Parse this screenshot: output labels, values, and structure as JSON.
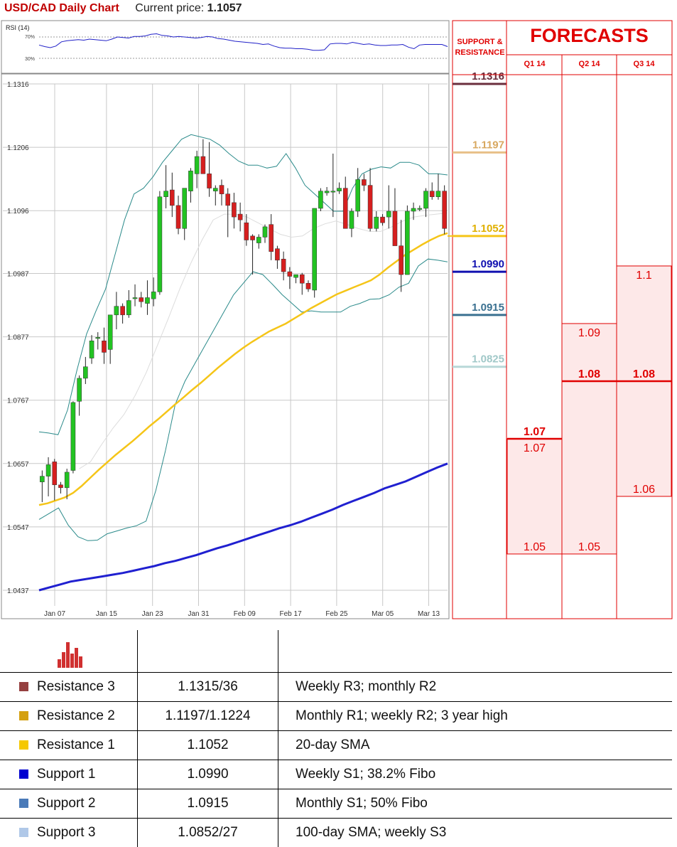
{
  "header": {
    "title": "USD/CAD Daily Chart",
    "price_label": "Current price:",
    "price_value": "1.1057"
  },
  "rsi": {
    "label": "RSI (14)",
    "level_high": "70%",
    "level_low": "30%",
    "values": [
      55,
      52,
      50,
      53,
      61,
      63,
      64,
      65,
      64,
      66,
      65,
      64,
      63,
      66,
      70,
      69,
      68,
      71,
      71,
      72,
      75,
      76,
      73,
      72,
      70,
      71,
      70,
      69,
      68,
      69,
      71,
      70,
      67,
      66,
      64,
      62,
      61,
      60,
      59,
      58,
      56,
      57,
      53,
      50,
      49,
      49,
      48,
      48,
      47,
      45,
      45,
      46,
      57,
      58,
      58,
      57,
      60,
      58,
      56,
      57,
      55,
      54,
      54,
      55,
      55,
      56,
      51,
      48,
      55,
      56,
      56,
      56,
      56,
      52
    ]
  },
  "forecast_panel": {
    "title": "FORECASTS",
    "sr_title": [
      "SUPPORT &",
      "RESISTANCE"
    ],
    "quarters": [
      "Q1 14",
      "Q2 14",
      "Q3 14"
    ],
    "colors": {
      "red": "#e00000",
      "box_fill": "#fde8e8"
    },
    "bands": [
      {
        "quarter": "Q1 14",
        "low": 1.05,
        "high": 1.07,
        "point": 1.07,
        "label_low": "1.05",
        "label_high": "1.07",
        "label_point": "1.07"
      },
      {
        "quarter": "Q2 14",
        "low": 1.05,
        "high": 1.09,
        "point": 1.08,
        "label_low": "1.05",
        "label_high": "1.09",
        "label_point": "1.08"
      },
      {
        "quarter": "Q3 14",
        "low": 1.06,
        "high": 1.1,
        "point": 1.08,
        "label_low": "1.06",
        "label_high": "1.1",
        "label_point": "1.08"
      }
    ]
  },
  "chart_data": {
    "type": "candlestick",
    "title": "USD/CAD Daily Chart",
    "y_ticks": [
      "1.1316",
      "1.1206",
      "1.1096",
      "1.0987",
      "1.0877",
      "1.0767",
      "1.0657",
      "1.0547",
      "1.0437"
    ],
    "x_ticks": [
      "Jan 07",
      "Jan 15",
      "Jan 23",
      "Jan 31",
      "Feb 09",
      "Feb 17",
      "Feb 25",
      "Mar 05",
      "Mar 13"
    ],
    "ylim": [
      1.0415,
      1.1338
    ],
    "grid": true,
    "candles": [
      [
        1.0625,
        1.0645,
        1.059,
        1.0635
      ],
      [
        1.0635,
        1.0668,
        1.06,
        1.0655
      ],
      [
        1.066,
        1.0665,
        1.0593,
        1.062
      ],
      [
        1.062,
        1.0625,
        1.0605,
        1.0615
      ],
      [
        1.0615,
        1.0648,
        1.0595,
        1.0642
      ],
      [
        1.0645,
        1.0765,
        1.064,
        1.0763
      ],
      [
        1.0765,
        1.081,
        1.074,
        1.0805
      ],
      [
        1.0805,
        1.0842,
        1.0795,
        1.0825
      ],
      [
        1.084,
        1.088,
        1.083,
        1.087
      ],
      [
        1.0875,
        1.0885,
        1.0855,
        1.0876
      ],
      [
        1.087,
        1.0893,
        1.083,
        1.085
      ],
      [
        1.0855,
        1.0915,
        1.083,
        1.0915
      ],
      [
        1.0915,
        1.0955,
        1.089,
        1.093
      ],
      [
        1.093,
        1.0935,
        1.09,
        1.0915
      ],
      [
        1.0915,
        1.0958,
        1.091,
        1.094
      ],
      [
        1.0945,
        1.0968,
        1.093,
        1.0945
      ],
      [
        1.0945,
        1.0955,
        1.0928,
        1.0938
      ],
      [
        1.0935,
        1.0975,
        1.0915,
        1.0945
      ],
      [
        1.0943,
        1.098,
        1.093,
        1.0955
      ],
      [
        1.0955,
        1.113,
        1.095,
        1.112
      ],
      [
        1.112,
        1.1175,
        1.11,
        1.113
      ],
      [
        1.1132,
        1.1162,
        1.1085,
        1.1105
      ],
      [
        1.1105,
        1.1122,
        1.1055,
        1.1065
      ],
      [
        1.1065,
        1.113,
        1.1045,
        1.1135
      ],
      [
        1.113,
        1.117,
        1.111,
        1.1165
      ],
      [
        1.116,
        1.12,
        1.1135,
        1.119
      ],
      [
        1.119,
        1.122,
        1.116,
        1.116
      ],
      [
        1.116,
        1.1215,
        1.112,
        1.1135
      ],
      [
        1.113,
        1.114,
        1.1105,
        1.1135
      ],
      [
        1.114,
        1.115,
        1.1105,
        1.1125
      ],
      [
        1.1125,
        1.1135,
        1.105,
        1.1105
      ],
      [
        1.111,
        1.1127,
        1.1065,
        1.1085
      ],
      [
        1.109,
        1.111,
        1.106,
        1.108
      ],
      [
        1.1075,
        1.109,
        1.1035,
        1.1045
      ],
      [
        1.1052,
        1.1055,
        1.0985,
        1.1045
      ],
      [
        1.104,
        1.1055,
        1.103,
        1.105
      ],
      [
        1.105,
        1.1072,
        1.104,
        1.1068
      ],
      [
        1.1072,
        1.109,
        1.101,
        1.1025
      ],
      [
        1.103,
        1.1035,
        1.0995,
        1.101
      ],
      [
        1.1012,
        1.1025,
        1.0975,
        1.099
      ],
      [
        1.099,
        1.0998,
        1.096,
        1.0982
      ],
      [
        1.098,
        1.0985,
        1.097,
        1.0985
      ],
      [
        1.0985,
        1.0988,
        1.095,
        1.097
      ],
      [
        1.097,
        1.0975,
        1.0955,
        1.096
      ],
      [
        1.0958,
        1.11,
        1.0945,
        1.11
      ],
      [
        1.11,
        1.1135,
        1.1095,
        1.113
      ],
      [
        1.1127,
        1.1137,
        1.1122,
        1.113
      ],
      [
        1.113,
        1.1195,
        1.1085,
        1.113
      ],
      [
        1.113,
        1.1145,
        1.1125,
        1.1135
      ],
      [
        1.1135,
        1.1155,
        1.1065,
        1.1065
      ],
      [
        1.1065,
        1.11,
        1.105,
        1.1095
      ],
      [
        1.1095,
        1.117,
        1.1085,
        1.115
      ],
      [
        1.115,
        1.116,
        1.113,
        1.114
      ],
      [
        1.114,
        1.117,
        1.106,
        1.1065
      ],
      [
        1.1065,
        1.1095,
        1.106,
        1.1085
      ],
      [
        1.1085,
        1.109,
        1.107,
        1.1075
      ],
      [
        1.1085,
        1.114,
        1.1065,
        1.1095
      ],
      [
        1.1095,
        1.1135,
        1.104,
        1.1035
      ],
      [
        1.1035,
        1.108,
        1.0955,
        1.0985
      ],
      [
        1.0985,
        1.1105,
        1.0985,
        1.1095
      ],
      [
        1.1095,
        1.111,
        1.108,
        1.11
      ],
      [
        1.11,
        1.1105,
        1.1095,
        1.11
      ],
      [
        1.11,
        1.1135,
        1.1085,
        1.113
      ],
      [
        1.113,
        1.1145,
        1.1115,
        1.112
      ],
      [
        1.112,
        1.116,
        1.1115,
        1.113
      ],
      [
        1.113,
        1.114,
        1.1055,
        1.1065
      ]
    ],
    "sma20": [
      1.0585,
      1.0588,
      1.0593,
      1.0598,
      1.0606,
      1.0618,
      1.0632,
      1.0646,
      1.0659,
      1.0672,
      1.0684,
      1.0696,
      1.0709,
      1.0722,
      1.0734,
      1.0747,
      1.076,
      1.0772,
      1.0785,
      1.0797,
      1.081,
      1.0823,
      1.0835,
      1.0847,
      1.0858,
      1.0868,
      1.0877,
      1.0886,
      1.0893,
      1.09,
      1.0909,
      1.0918,
      1.0927,
      1.0935,
      1.0943,
      1.0951,
      1.0957,
      1.0963,
      1.0969,
      1.0975,
      1.0985,
      1.0997,
      1.1008,
      1.1019,
      1.1028,
      1.1037,
      1.1045,
      1.1052,
      1.1057
    ],
    "sma100": [
      1.0437,
      1.0442,
      1.0447,
      1.0452,
      1.0455,
      1.0458,
      1.0461,
      1.0464,
      1.0467,
      1.0471,
      1.0475,
      1.0479,
      1.0484,
      1.0488,
      1.0493,
      1.0498,
      1.0504,
      1.051,
      1.0515,
      1.0521,
      1.0527,
      1.0533,
      1.0539,
      1.0545,
      1.055,
      1.0556,
      1.0563,
      1.057,
      1.0577,
      1.0585,
      1.0592,
      1.0599,
      1.0606,
      1.0614,
      1.062,
      1.0626,
      1.0634,
      1.0642,
      1.065,
      1.0657
    ],
    "bb_upper": [
      1.0712,
      1.071,
      1.0707,
      1.075,
      1.082,
      1.0882,
      1.0922,
      1.096,
      1.102,
      1.108,
      1.1125,
      1.1135,
      1.1155,
      1.118,
      1.12,
      1.122,
      1.1228,
      1.1224,
      1.122,
      1.121,
      1.1195,
      1.1182,
      1.1175,
      1.1175,
      1.117,
      1.1173,
      1.1195,
      1.117,
      1.114,
      1.1125,
      1.111,
      1.1095,
      1.1095,
      1.1135,
      1.116,
      1.1168,
      1.1172,
      1.117,
      1.118,
      1.118,
      1.1175,
      1.116,
      1.116,
      1.1158
    ],
    "bb_mid": [
      1.0648,
      1.066,
      1.069,
      1.0718,
      1.0742,
      1.0775,
      1.0815,
      1.0862,
      1.091,
      1.096,
      1.1005,
      1.1045,
      1.108,
      1.109,
      1.109,
      1.1085,
      1.1075,
      1.1065,
      1.1055,
      1.105,
      1.1052,
      1.1065,
      1.1073,
      1.1078,
      1.1072,
      1.1065,
      1.106,
      1.106,
      1.1068,
      1.1078,
      1.1085,
      1.1088,
      1.109,
      1.1092
    ],
    "bb_lower": [
      1.056,
      1.057,
      1.058,
      1.055,
      1.053,
      1.0523,
      1.0524,
      1.0535,
      1.054,
      1.0545,
      1.0549,
      1.0557,
      1.061,
      1.068,
      1.076,
      1.08,
      1.083,
      1.086,
      1.089,
      1.092,
      1.095,
      1.097,
      1.099,
      1.0985,
      1.0968,
      1.095,
      1.0935,
      1.092,
      1.0922,
      1.092,
      1.092,
      1.092,
      1.093,
      1.0935,
      1.0942,
      1.0943,
      1.095,
      1.0963,
      1.097,
      1.1,
      1.1012,
      1.101,
      1.1007
    ]
  },
  "levels": [
    {
      "value": 1.1316,
      "label": "1.1316",
      "color": "#6a2e3d",
      "text_color": "#6a2e3d"
    },
    {
      "value": 1.1197,
      "label": "1.1197",
      "color": "#e8c088",
      "text_color": "#d8a860"
    },
    {
      "value": 1.1052,
      "label": "1.1052",
      "color": "#f5c518",
      "text_color": "#e0b000"
    },
    {
      "value": 1.099,
      "label": "1.0990",
      "color": "#1010b0",
      "text_color": "#1010b0"
    },
    {
      "value": 1.0915,
      "label": "1.0915",
      "color": "#3a7090",
      "text_color": "#3a7090"
    },
    {
      "value": 1.0825,
      "label": "1.0825",
      "color": "#b8d8d8",
      "text_color": "#a0c8c8"
    }
  ],
  "table": {
    "rows": [
      {
        "name": "Resistance 3",
        "color": "#954040",
        "level": "1.1315/36",
        "note": "Weekly R3; monthly R2"
      },
      {
        "name": "Resistance 2",
        "color": "#d4a010",
        "level": "1.1197/1.1224",
        "note": "Monthly R1; weekly R2; 3 year high"
      },
      {
        "name": "Resistance 1",
        "color": "#f5c800",
        "level": "1.1052",
        "note": "20-day SMA"
      },
      {
        "name": "Support 1",
        "color": "#0000d0",
        "level": "1.0990",
        "note": "Weekly S1; 38.2% Fibo"
      },
      {
        "name": "Support 2",
        "color": "#4a7ab8",
        "level": "1.0915",
        "note": "Monthly S1; 50% Fibo"
      },
      {
        "name": "Support 3",
        "color": "#b0c8e8",
        "level": "1.0852/27",
        "note": "100-day SMA; weekly S3"
      }
    ]
  }
}
